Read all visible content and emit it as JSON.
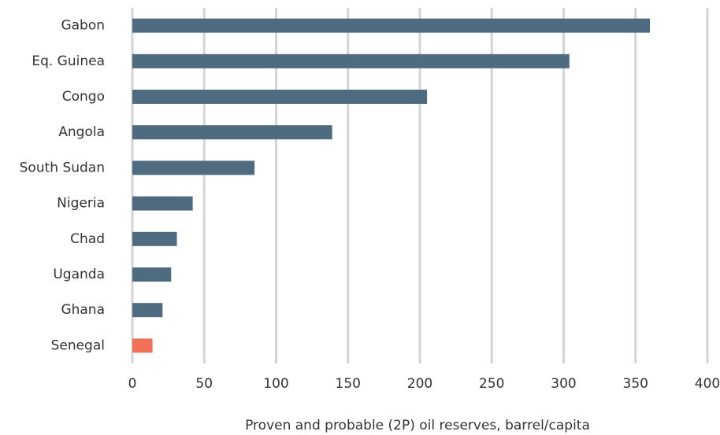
{
  "chart_data": {
    "type": "barh",
    "x_label": "Proven and probable (2P) oil reserves, barrel/capita",
    "categories": [
      "Gabon",
      "Eq. Guinea",
      "Congo",
      "Angola",
      "South Sudan",
      "Nigeria",
      "Chad",
      "Uganda",
      "Ghana",
      "Senegal"
    ],
    "values": [
      360,
      304,
      205,
      139,
      85,
      42,
      31,
      27,
      21,
      14
    ],
    "colors": [
      "#4e6b80",
      "#4e6b80",
      "#4e6b80",
      "#4e6b80",
      "#4e6b80",
      "#4e6b80",
      "#4e6b80",
      "#4e6b80",
      "#4e6b80",
      "#f07158"
    ],
    "xlim": [
      0,
      400
    ],
    "xticks": [
      0,
      50,
      100,
      150,
      200,
      250,
      300,
      350,
      400
    ],
    "grid": true
  }
}
